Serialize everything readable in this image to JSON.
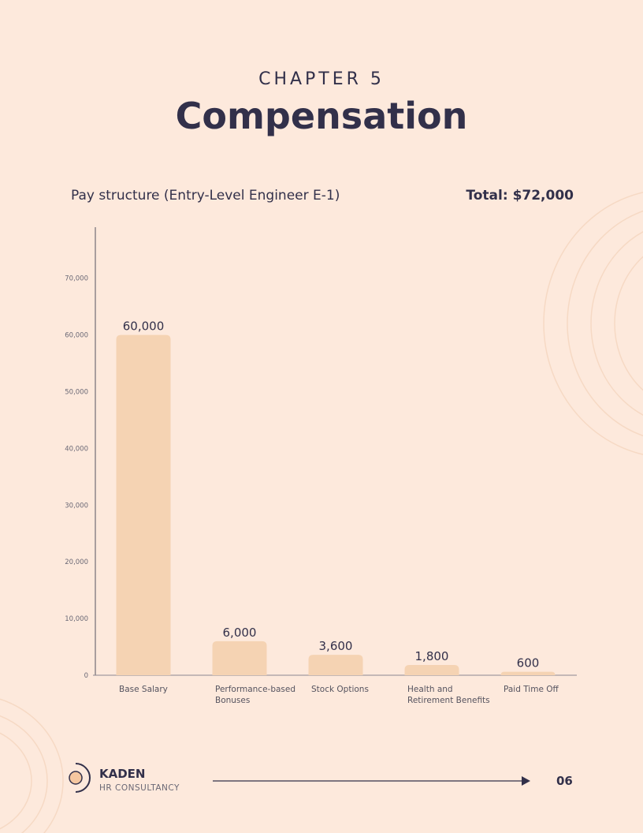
{
  "header": {
    "chapter": "CHAPTER 5",
    "title": "Compensation"
  },
  "chart_data": {
    "type": "bar",
    "title": "Pay structure (Entry-Level Engineer E-1)",
    "annotation": "Total: $72,000",
    "categories": [
      "Base Salary",
      "Performance-based Bonuses",
      "Stock Options",
      "Health and Retirement Benefits",
      "Paid Time Off"
    ],
    "values": [
      60000,
      6000,
      3600,
      1800,
      600
    ],
    "value_labels": [
      "60,000",
      "6,000",
      "3,600",
      "1,800",
      "600"
    ],
    "color": "#f5d3b3",
    "ylim": [
      0,
      79000
    ],
    "yticks": [
      0,
      {
        "value": 10000,
        "label": "10,000"
      },
      {
        "value": 20000,
        "label": "20,000"
      },
      {
        "value": 30000,
        "label": "30,000"
      },
      {
        "value": 40000,
        "label": "40,000"
      },
      {
        "value": 50000,
        "label": "50,000"
      },
      {
        "value": 60000,
        "label": "60,000"
      },
      {
        "value": 70000,
        "label": "70,000"
      }
    ]
  },
  "footer": {
    "brand": "KADEN",
    "subtitle": "HR CONSULTANCY",
    "page": "06"
  }
}
